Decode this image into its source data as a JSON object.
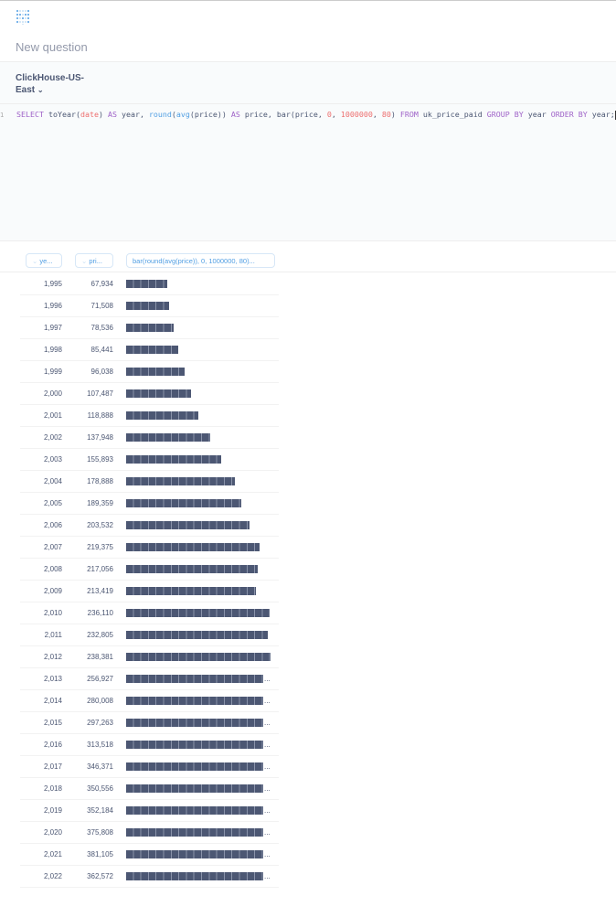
{
  "header": {
    "title": "New question",
    "logo_icon": "metabase-logo"
  },
  "editor": {
    "database": "ClickHouse-US-East",
    "line_number": "1",
    "sql": "SELECT toYear(date) AS year, round(avg(price)) AS price, bar(price, 0, 1000000, 80) FROM uk_price_paid GROUP BY year ORDER BY year;"
  },
  "table": {
    "columns": [
      "ye...",
      "pri...",
      "bar(round(avg(price)), 0, 1000000, 80)..."
    ],
    "rows": [
      [
        "1,995",
        "67,934",
        67934
      ],
      [
        "1,996",
        "71,508",
        71508
      ],
      [
        "1,997",
        "78,536",
        78536
      ],
      [
        "1,998",
        "85,441",
        85441
      ],
      [
        "1,999",
        "96,038",
        96038
      ],
      [
        "2,000",
        "107,487",
        107487
      ],
      [
        "2,001",
        "118,888",
        118888
      ],
      [
        "2,002",
        "137,948",
        137948
      ],
      [
        "2,003",
        "155,893",
        155893
      ],
      [
        "2,004",
        "178,888",
        178888
      ],
      [
        "2,005",
        "189,359",
        189359
      ],
      [
        "2,006",
        "203,532",
        203532
      ],
      [
        "2,007",
        "219,375",
        219375
      ],
      [
        "2,008",
        "217,056",
        217056
      ],
      [
        "2,009",
        "213,419",
        213419
      ],
      [
        "2,010",
        "236,110",
        236110
      ],
      [
        "2,011",
        "232,805",
        232805
      ],
      [
        "2,012",
        "238,381",
        238381
      ],
      [
        "2,013",
        "256,927",
        256927
      ],
      [
        "2,014",
        "280,008",
        280008
      ],
      [
        "2,015",
        "297,263",
        297263
      ],
      [
        "2,016",
        "313,518",
        313518
      ],
      [
        "2,017",
        "346,371",
        346371
      ],
      [
        "2,018",
        "350,556",
        350556
      ],
      [
        "2,019",
        "352,184",
        352184
      ],
      [
        "2,020",
        "375,808",
        375808
      ],
      [
        "2,021",
        "381,105",
        381105
      ],
      [
        "2,022",
        "362,572",
        362572
      ]
    ],
    "bar_color": "#4c5773"
  }
}
